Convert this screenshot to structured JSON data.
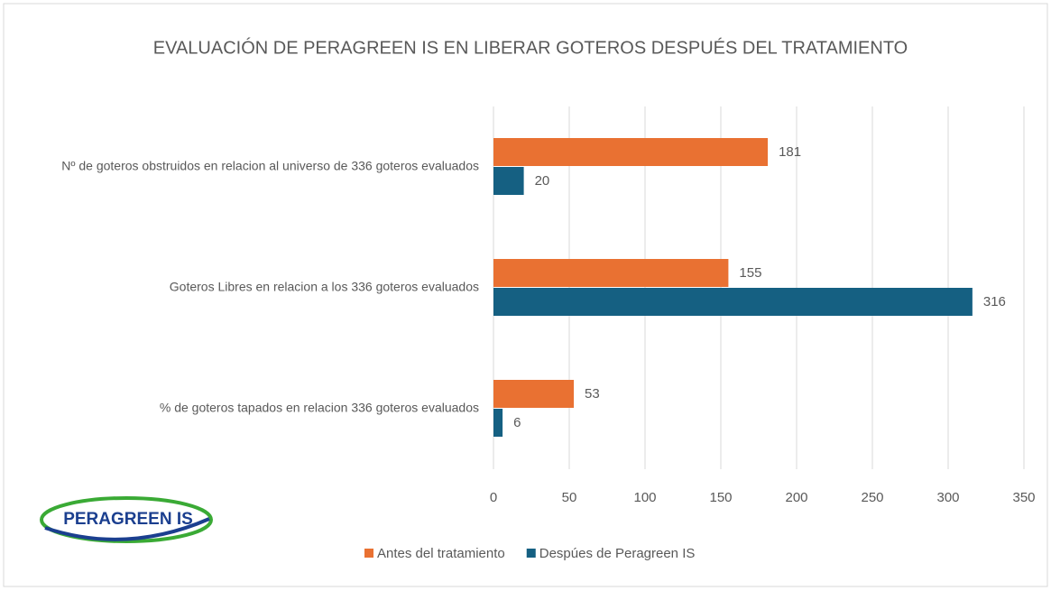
{
  "chart_data": {
    "type": "hbar",
    "title": "EVALUACIÓN DE PERAGREEN IS EN LIBERAR GOTEROS DESPUÉS DEL TRATAMIENTO",
    "logo": "PERAGREEN IS",
    "categories": [
      "Nº de goteros obstruidos en relacion al universo de 336 goteros evaluados",
      "Goteros Libres en relacion a los 336 goteros evaluados",
      "% de goteros tapados en relacion 336 goteros evaluados"
    ],
    "series": [
      {
        "name": "Antes del tratamiento",
        "color": "#e97132",
        "values": [
          181,
          155,
          53
        ]
      },
      {
        "name": "Despúes de Peragreen IS",
        "color": "#156082",
        "values": [
          20,
          316,
          6
        ]
      }
    ],
    "xlim": [
      0,
      350
    ],
    "xticks": [
      0,
      50,
      100,
      150,
      200,
      250,
      300,
      350
    ],
    "grid": true,
    "legend": "bottom"
  }
}
